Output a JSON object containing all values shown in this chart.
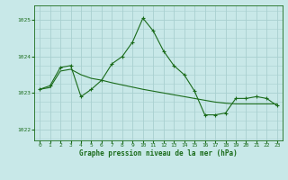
{
  "title": "Graphe pression niveau de la mer (hPa)",
  "background_color": "#c8e8e8",
  "grid_color": "#a8d0d0",
  "line_color": "#1a6b1a",
  "xlim": [
    -0.5,
    23.5
  ],
  "ylim": [
    1021.7,
    1025.4
  ],
  "yticks": [
    1022,
    1023,
    1024,
    1025
  ],
  "xticks": [
    0,
    1,
    2,
    3,
    4,
    5,
    6,
    7,
    8,
    9,
    10,
    11,
    12,
    13,
    14,
    15,
    16,
    17,
    18,
    19,
    20,
    21,
    22,
    23
  ],
  "hours": [
    0,
    1,
    2,
    3,
    4,
    5,
    6,
    7,
    8,
    9,
    10,
    11,
    12,
    13,
    14,
    15,
    16,
    17,
    18,
    19,
    20,
    21,
    22,
    23
  ],
  "pressure1": [
    1023.1,
    1023.2,
    1023.7,
    1023.75,
    1022.9,
    1023.1,
    1023.35,
    1023.8,
    1024.0,
    1024.4,
    1025.05,
    1024.7,
    1024.15,
    1023.75,
    1023.5,
    1023.05,
    1022.4,
    1022.4,
    1022.45,
    1022.85,
    1022.85,
    1022.9,
    1022.85,
    1022.65
  ],
  "pressure2": [
    1023.1,
    1023.15,
    1023.6,
    1023.65,
    1023.5,
    1023.4,
    1023.35,
    1023.28,
    1023.22,
    1023.16,
    1023.1,
    1023.05,
    1023.0,
    1022.95,
    1022.9,
    1022.85,
    1022.8,
    1022.75,
    1022.72,
    1022.7,
    1022.7,
    1022.7,
    1022.7,
    1022.7
  ]
}
